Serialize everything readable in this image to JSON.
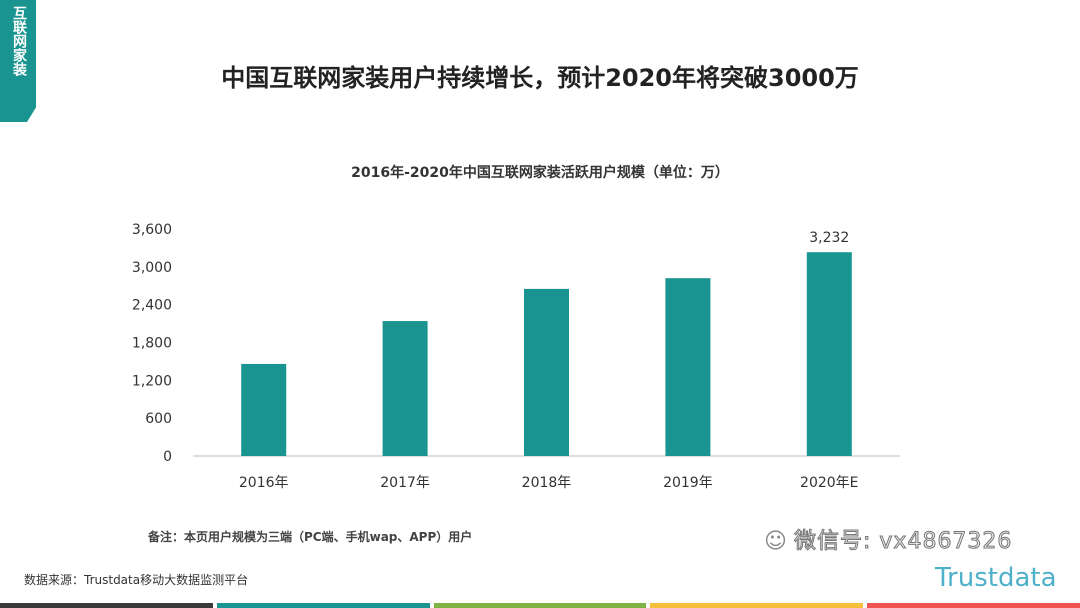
{
  "tag": "互联网家装",
  "headline": "中国互联网家装用户持续增长，预计2020年将突破3000万",
  "chart_data": {
    "type": "bar",
    "title": "2016年-2020年中国互联网家装活跃用户规模（单位：万）",
    "categories": [
      "2016年",
      "2017年",
      "2018年",
      "2019年",
      "2020年E"
    ],
    "values": [
      1460,
      2140,
      2650,
      2820,
      3232
    ],
    "data_labels": [
      "",
      "",
      "",
      "",
      "3,232"
    ],
    "yticks": [
      "0",
      "600",
      "1,200",
      "1,800",
      "2,400",
      "3,000",
      "3,600"
    ],
    "ylim": [
      0,
      3600
    ],
    "grid": false,
    "bar_color": "#1a9490"
  },
  "note": "备注：本页用户规模为三端（PC端、手机wap、APP）用户",
  "source": "数据来源：Trustdata移动大数据监测平台",
  "watermark": "微信号: vx4867326",
  "logo": "Trustdata",
  "footer_colors": [
    "#3a3a3a",
    "#1a9490",
    "#7cb342",
    "#f6bf3c",
    "#ef5350"
  ]
}
